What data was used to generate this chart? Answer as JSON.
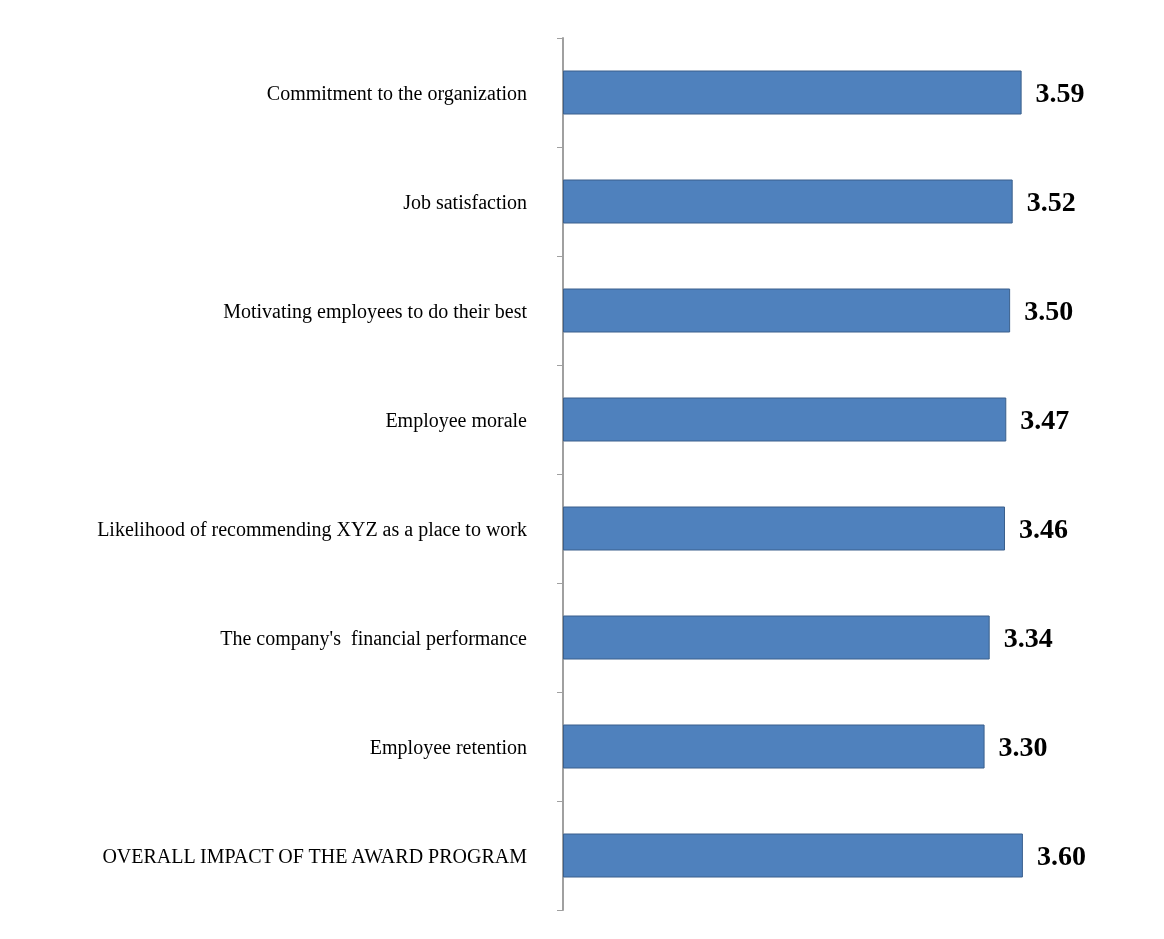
{
  "chart_data": {
    "type": "bar",
    "orientation": "horizontal",
    "categories": [
      "Commitment to the organization",
      "Job satisfaction",
      "Motivating employees to do their best",
      "Employee morale",
      "Likelihood of recommending XYZ as a place to work",
      "The company's  financial performance",
      "Employee retention",
      "OVERALL IMPACT OF THE AWARD PROGRAM"
    ],
    "values": [
      3.59,
      3.52,
      3.5,
      3.47,
      3.46,
      3.34,
      3.3,
      3.6
    ],
    "value_labels": [
      "3.59",
      "3.52",
      "3.50",
      "3.47",
      "3.46",
      "3.34",
      "3.30",
      "3.60"
    ],
    "color": "#4f81bd",
    "tick_labels": "y"
  }
}
